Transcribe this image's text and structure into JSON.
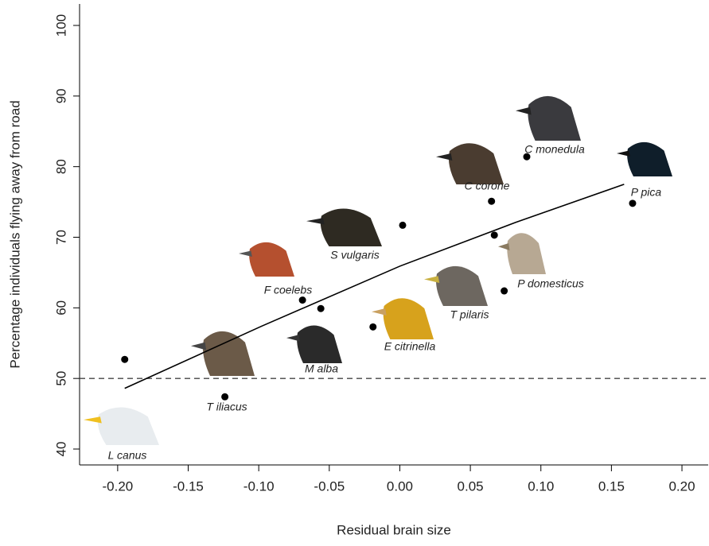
{
  "chart_data": {
    "type": "scatter",
    "x_label": "Residual brain size",
    "y_label": "Percentage individuals flying away from road",
    "x": [
      -0.195,
      -0.124,
      -0.069,
      -0.056,
      -0.019,
      0.002,
      0.065,
      0.067,
      0.074,
      0.09,
      0.165
    ],
    "values": [
      52.7,
      47.4,
      61.1,
      59.9,
      57.3,
      71.7,
      75.1,
      70.3,
      62.4,
      81.4,
      74.8
    ],
    "color": "#000000",
    "trend": {
      "x": [
        -0.195,
        -0.098,
        0,
        0.082,
        0.159
      ],
      "values": [
        48.6,
        57.4,
        65.9,
        72.1,
        77.5
      ]
    },
    "hline": 50,
    "annotations": [
      "L canus",
      "T iliacus",
      "F coelebs",
      "M alba",
      "E citrinella",
      "S vulgaris",
      "C corone",
      "C monedula",
      "P pica",
      "P domesticus",
      "T pilaris"
    ],
    "xlim": [
      -0.227,
      0.2186
    ],
    "ylim": [
      37.75,
      103.04
    ],
    "xticks": [
      {
        "value": -0.2,
        "label": "-0.20"
      },
      {
        "value": -0.15,
        "label": "-0.15"
      },
      {
        "value": -0.1,
        "label": "-0.10"
      },
      {
        "value": -0.05,
        "label": "-0.05"
      },
      {
        "value": 0,
        "label": "0.00"
      },
      {
        "value": 0.05,
        "label": "0.05"
      },
      {
        "value": 0.1,
        "label": "0.10"
      },
      {
        "value": 0.15,
        "label": "0.15"
      },
      {
        "value": 0.2,
        "label": "0.20"
      }
    ],
    "yticks": [
      40,
      50,
      60,
      70,
      80,
      90,
      100
    ]
  }
}
